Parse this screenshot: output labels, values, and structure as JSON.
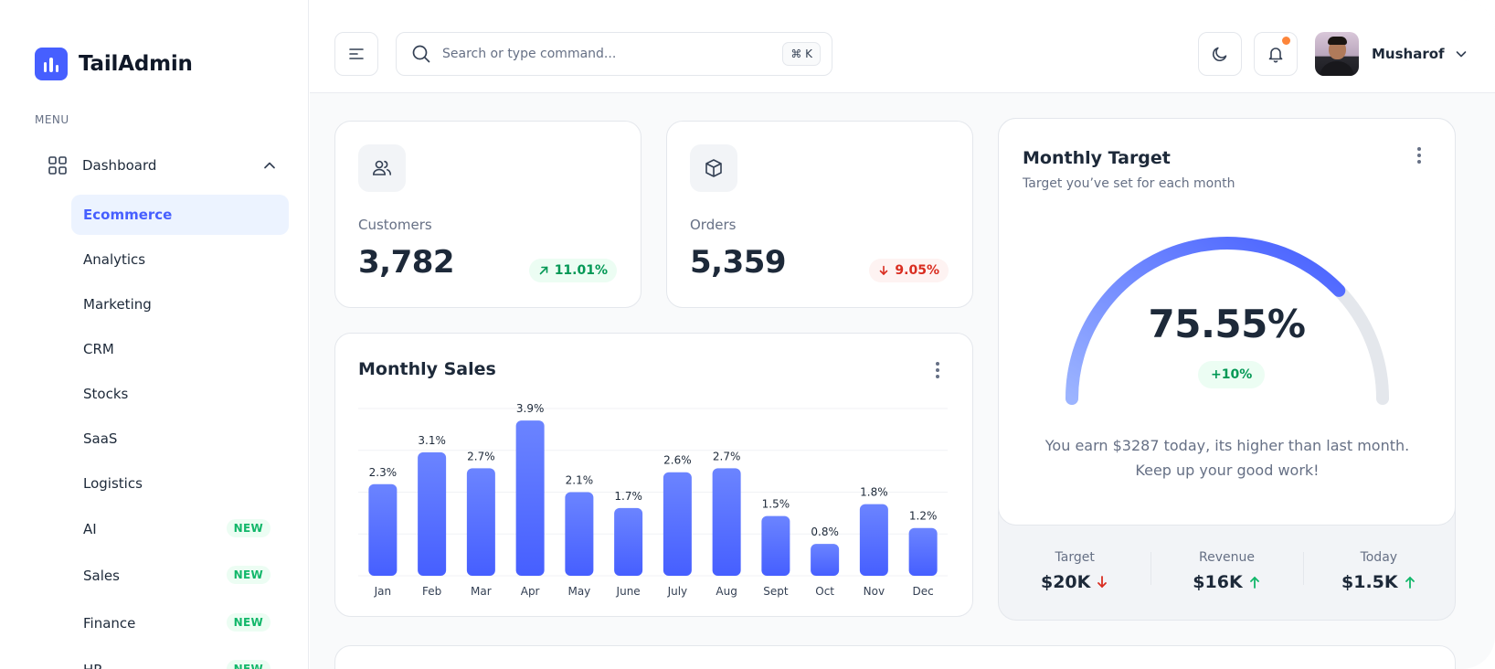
{
  "brand": {
    "name": "TailAdmin"
  },
  "sidebar": {
    "menu_label": "MENU",
    "dashboard_label": "Dashboard",
    "items": [
      {
        "label": "Ecommerce",
        "active": true,
        "badge": ""
      },
      {
        "label": "Analytics",
        "badge": ""
      },
      {
        "label": "Marketing",
        "badge": ""
      },
      {
        "label": "CRM",
        "badge": ""
      },
      {
        "label": "Stocks",
        "badge": ""
      },
      {
        "label": "SaaS",
        "badge": ""
      },
      {
        "label": "Logistics",
        "badge": ""
      },
      {
        "label": "AI",
        "badge": "NEW"
      },
      {
        "label": "Sales",
        "badge": "NEW"
      },
      {
        "label": "Finance",
        "badge": "NEW"
      },
      {
        "label": "HR",
        "badge": "NEW"
      }
    ]
  },
  "header": {
    "search_placeholder": "Search or type command...",
    "shortcut": "⌘ K",
    "user_name": "Musharof"
  },
  "metrics": {
    "customers": {
      "label": "Customers",
      "value": "3,782",
      "change": "11.01%",
      "trend": "up"
    },
    "orders": {
      "label": "Orders",
      "value": "5,359",
      "change": "9.05%",
      "trend": "down"
    }
  },
  "monthly_sales": {
    "title": "Monthly Sales"
  },
  "chart_data": {
    "type": "bar",
    "title": "Monthly Sales",
    "categories": [
      "Jan",
      "Feb",
      "Mar",
      "Apr",
      "May",
      "June",
      "July",
      "Aug",
      "Sept",
      "Oct",
      "Nov",
      "Dec"
    ],
    "values": [
      2.3,
      3.1,
      2.7,
      3.9,
      2.1,
      1.7,
      2.6,
      2.7,
      1.5,
      0.8,
      1.8,
      1.2
    ],
    "data_labels": [
      "2.3%",
      "3.1%",
      "2.7%",
      "3.9%",
      "2.1%",
      "1.7%",
      "2.6%",
      "2.7%",
      "1.5%",
      "0.8%",
      "1.8%",
      "1.2%"
    ],
    "unit": "%",
    "grid": true,
    "bar_color": "#465fff"
  },
  "monthly_target": {
    "title": "Monthly Target",
    "subtitle": "Target you’ve set for each month",
    "percent": 75.55,
    "percent_label": "75.55%",
    "change_label": "+10%",
    "message_line1": "You earn $3287 today, its higher than last month.",
    "message_line2": "Keep up your good work!",
    "stats": [
      {
        "label": "Target",
        "value": "$20K",
        "trend": "down"
      },
      {
        "label": "Revenue",
        "value": "$16K",
        "trend": "up"
      },
      {
        "label": "Today",
        "value": "$1.5K",
        "trend": "up"
      }
    ],
    "colors": {
      "accent": "#465fff",
      "track": "#e4e7ec"
    }
  }
}
